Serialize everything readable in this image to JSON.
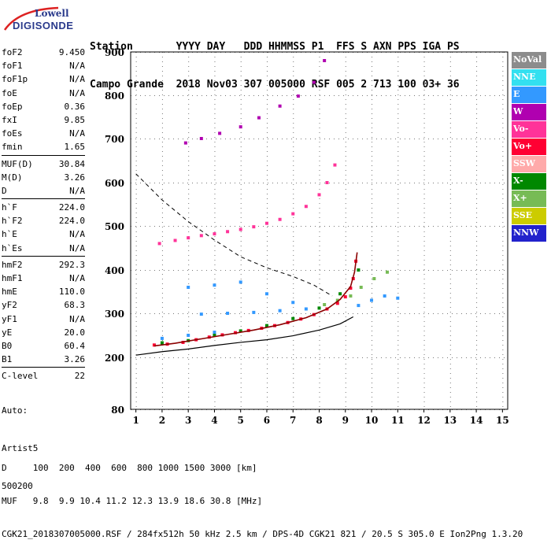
{
  "logo": {
    "line1": "Lowell",
    "line2": "DIGISONDE"
  },
  "header": {
    "line1": "Station       YYYY DAY   DDD HHMMSS P1  FFS S AXN PPS IGA PS",
    "line2": "Campo Grande  2018 Nov03 307 005000 RSF 005 2 713 100 03+ 36"
  },
  "params": {
    "group1": [
      {
        "name": "foF2",
        "value": "9.450"
      },
      {
        "name": "foF1",
        "value": "N/A"
      },
      {
        "name": "foF1p",
        "value": "N/A"
      },
      {
        "name": "foE",
        "value": "N/A"
      },
      {
        "name": "foEp",
        "value": "0.36"
      },
      {
        "name": "fxI",
        "value": "9.85"
      },
      {
        "name": "foEs",
        "value": "N/A"
      },
      {
        "name": "fmin",
        "value": "1.65"
      }
    ],
    "group2": [
      {
        "name": "MUF(D)",
        "value": "30.84"
      },
      {
        "name": "M(D)",
        "value": "3.26"
      },
      {
        "name": "D",
        "value": "N/A"
      }
    ],
    "group3": [
      {
        "name": "h`F",
        "value": "224.0"
      },
      {
        "name": "h`F2",
        "value": "224.0"
      },
      {
        "name": "h`E",
        "value": "N/A"
      },
      {
        "name": "h`Es",
        "value": "N/A"
      }
    ],
    "group4": [
      {
        "name": "hmF2",
        "value": "292.3"
      },
      {
        "name": "hmF1",
        "value": "N/A"
      },
      {
        "name": "hmE",
        "value": "110.0"
      },
      {
        "name": "yF2",
        "value": "68.3"
      },
      {
        "name": "yF1",
        "value": "N/A"
      },
      {
        "name": "yE",
        "value": "20.0"
      },
      {
        "name": "B0",
        "value": "60.4"
      },
      {
        "name": "B1",
        "value": "3.26"
      }
    ],
    "group5": [
      {
        "name": "C-level",
        "value": "22"
      }
    ]
  },
  "meta": {
    "line1": "Auto:",
    "line2": "Artist5",
    "line3": "500200"
  },
  "legend": [
    {
      "label": "NoVal",
      "color": "#8c8c8c"
    },
    {
      "label": "NNE",
      "color": "#33e0f0"
    },
    {
      "label": "E",
      "color": "#3399ff"
    },
    {
      "label": "W",
      "color": "#b000b0"
    },
    {
      "label": "Vo-",
      "color": "#ff3399"
    },
    {
      "label": "Vo+",
      "color": "#ff0033"
    },
    {
      "label": "SSW",
      "color": "#ffaaaa"
    },
    {
      "label": "X-",
      "color": "#008800"
    },
    {
      "label": "X+",
      "color": "#77bb55"
    },
    {
      "label": "SSE",
      "color": "#cccc00"
    },
    {
      "label": "NNW",
      "color": "#2222cc"
    }
  ],
  "footer": {
    "line1": "D     100  200  400  600  800 1000 1500 3000 [km]",
    "line2": "MUF   9.8  9.9 10.4 11.2 12.3 13.9 18.6 30.8 [MHz]",
    "line3": "CGK21_2018307005000.RSF / 284fx512h 50 kHz 2.5 km / DPS-4D CGK21 821 / 20.5 S 305.0 E Ion2Png 1.3.20"
  },
  "chart_data": {
    "type": "scatter",
    "x_ticks": [
      "1",
      "2",
      "3",
      "4",
      "5",
      "6",
      "7",
      "8",
      "9",
      "10",
      "11",
      "12",
      "13",
      "14",
      "15"
    ],
    "y_ticks": [
      "80",
      "200",
      "300",
      "400",
      "500",
      "600",
      "700",
      "800",
      "900"
    ],
    "xlim": [
      0.8,
      15.2
    ],
    "y_scale": "nonlinear",
    "grid": true,
    "legend_position": "right",
    "series": [
      {
        "name": "Vo+",
        "color": "#ff0033",
        "points": [
          [
            1.7,
            228
          ],
          [
            2.2,
            230
          ],
          [
            2.8,
            234
          ],
          [
            3.3,
            240
          ],
          [
            3.8,
            246
          ],
          [
            4.3,
            251
          ],
          [
            4.8,
            256
          ],
          [
            5.3,
            261
          ],
          [
            5.8,
            266
          ],
          [
            6.3,
            272
          ],
          [
            6.8,
            279
          ],
          [
            7.3,
            287
          ],
          [
            7.8,
            297
          ],
          [
            8.3,
            310
          ],
          [
            8.7,
            323
          ],
          [
            9.0,
            338
          ],
          [
            9.2,
            358
          ],
          [
            9.3,
            380
          ],
          [
            9.4,
            420
          ]
        ]
      },
      {
        "name": "Vo-",
        "color": "#ff3399",
        "points": [
          [
            1.9,
            460
          ],
          [
            2.5,
            467
          ],
          [
            3.0,
            473
          ],
          [
            3.5,
            478
          ],
          [
            4.0,
            482
          ],
          [
            4.5,
            487
          ],
          [
            5.0,
            492
          ],
          [
            5.5,
            498
          ],
          [
            6.0,
            506
          ],
          [
            6.5,
            515
          ],
          [
            7.0,
            528
          ],
          [
            7.5,
            545
          ],
          [
            8.0,
            572
          ],
          [
            8.3,
            600
          ],
          [
            8.6,
            640
          ]
        ]
      },
      {
        "name": "W",
        "color": "#b000b0",
        "points": [
          [
            2.9,
            690
          ],
          [
            3.5,
            700
          ],
          [
            4.2,
            712
          ],
          [
            5.0,
            727
          ],
          [
            5.7,
            748
          ],
          [
            6.5,
            775
          ],
          [
            7.2,
            798
          ],
          [
            7.8,
            830
          ],
          [
            8.2,
            880
          ]
        ]
      },
      {
        "name": "E",
        "color": "#3399ff",
        "points": [
          [
            3.0,
            360
          ],
          [
            4.0,
            365
          ],
          [
            5.0,
            372
          ],
          [
            6.0,
            345
          ],
          [
            7.0,
            325
          ],
          [
            3.5,
            298
          ],
          [
            4.5,
            300
          ],
          [
            5.5,
            302
          ],
          [
            6.5,
            306
          ],
          [
            7.5,
            310
          ],
          [
            2.0,
            243
          ],
          [
            3.0,
            250
          ],
          [
            4.0,
            257
          ],
          [
            9.5,
            318
          ],
          [
            10.0,
            330
          ],
          [
            10.5,
            340
          ],
          [
            11.0,
            335
          ]
        ]
      },
      {
        "name": "X-",
        "color": "#008800",
        "points": [
          [
            2.0,
            233
          ],
          [
            3.0,
            238
          ],
          [
            4.0,
            250
          ],
          [
            5.0,
            260
          ],
          [
            6.0,
            272
          ],
          [
            7.0,
            288
          ],
          [
            8.0,
            312
          ],
          [
            8.8,
            345
          ],
          [
            9.5,
            400
          ]
        ]
      },
      {
        "name": "X+",
        "color": "#77bb55",
        "points": [
          [
            8.2,
            320
          ],
          [
            8.7,
            330
          ],
          [
            9.2,
            340
          ],
          [
            9.6,
            360
          ],
          [
            10.1,
            380
          ],
          [
            10.6,
            395
          ]
        ]
      }
    ],
    "fit_curves": [
      {
        "name": "inverted-profile",
        "style": "dark-red",
        "points": [
          [
            1.7,
            226
          ],
          [
            2.5,
            232
          ],
          [
            3.5,
            242
          ],
          [
            4.5,
            252
          ],
          [
            5.5,
            262
          ],
          [
            6.5,
            274
          ],
          [
            7.5,
            290
          ],
          [
            8.3,
            310
          ],
          [
            8.8,
            332
          ],
          [
            9.2,
            362
          ],
          [
            9.35,
            395
          ],
          [
            9.45,
            440
          ]
        ]
      },
      {
        "name": "true-height",
        "style": "black",
        "points": [
          [
            1.0,
            205
          ],
          [
            2.0,
            213
          ],
          [
            3.0,
            219
          ],
          [
            4.0,
            227
          ],
          [
            5.0,
            234
          ],
          [
            6.0,
            240
          ],
          [
            7.0,
            249
          ],
          [
            8.0,
            262
          ],
          [
            8.8,
            276
          ],
          [
            9.3,
            292
          ]
        ]
      },
      {
        "name": "extrapolation",
        "style": "dashed",
        "points": [
          [
            1.0,
            620
          ],
          [
            2.0,
            560
          ],
          [
            3.0,
            510
          ],
          [
            4.0,
            468
          ],
          [
            5.0,
            430
          ],
          [
            6.0,
            405
          ],
          [
            7.0,
            385
          ],
          [
            7.8,
            365
          ],
          [
            8.5,
            340
          ]
        ]
      }
    ]
  }
}
